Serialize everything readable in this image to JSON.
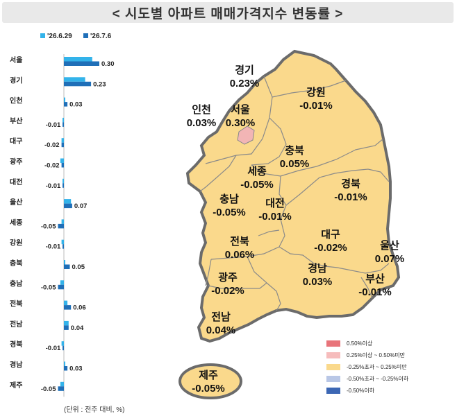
{
  "title": "< 시도별 아파트 매매가격지수 변동률 >",
  "footnote": "(단위 : 전주 대비, %)",
  "colors": {
    "series_prev": "#33b3ea",
    "series_curr": "#1f6fb8",
    "map_fill": "#fad98c",
    "map_seoul": "#f2b5b5",
    "map_border": "#8a8a8a",
    "map_outline": "#6b6b6b"
  },
  "chart_data": {
    "type": "bar",
    "orientation": "horizontal",
    "categories": [
      "서울",
      "경기",
      "인천",
      "부산",
      "대구",
      "광주",
      "대전",
      "울산",
      "세종",
      "강원",
      "충북",
      "충남",
      "전북",
      "전남",
      "경북",
      "경남",
      "제주"
    ],
    "series": [
      {
        "name": "'26.6.29",
        "values": [
          0.24,
          0.18,
          0.01,
          -0.01,
          -0.02,
          -0.03,
          -0.01,
          0.06,
          -0.02,
          -0.02,
          0.01,
          -0.03,
          0.03,
          0.04,
          -0.02,
          0.01,
          -0.03
        ]
      },
      {
        "name": "'26.7.6",
        "values": [
          0.3,
          0.23,
          0.03,
          -0.01,
          -0.02,
          -0.02,
          -0.01,
          0.07,
          -0.05,
          -0.01,
          0.05,
          -0.05,
          0.06,
          0.04,
          -0.01,
          0.03,
          -0.05
        ]
      }
    ],
    "data_labels": [
      "0.30",
      "0.23",
      "0.03",
      "-0.01",
      "-0.02",
      "-0.02",
      "-0.01",
      "0.07",
      "-0.05",
      "-0.01",
      "0.05",
      "-0.05",
      "0.06",
      "0.04",
      "-0.01",
      "0.03",
      "-0.05"
    ],
    "legend_position": "top"
  },
  "map_labels": [
    {
      "name": "경기",
      "value": "0.23%"
    },
    {
      "name": "강원",
      "value": "-0.01%"
    },
    {
      "name": "인천",
      "value": "0.03%"
    },
    {
      "name": "서울",
      "value": "0.30%"
    },
    {
      "name": "충북",
      "value": "0.05%"
    },
    {
      "name": "세종",
      "value": "-0.05%"
    },
    {
      "name": "경북",
      "value": "-0.01%"
    },
    {
      "name": "충남",
      "value": "-0.05%"
    },
    {
      "name": "대전",
      "value": "-0.01%"
    },
    {
      "name": "대구",
      "value": "-0.02%"
    },
    {
      "name": "울산",
      "value": "0.07%"
    },
    {
      "name": "전북",
      "value": "0.06%"
    },
    {
      "name": "경남",
      "value": "0.03%"
    },
    {
      "name": "부산",
      "value": "-0.01%"
    },
    {
      "name": "광주",
      "value": "-0.02%"
    },
    {
      "name": "전남",
      "value": "0.04%"
    },
    {
      "name": "제주",
      "value": "-0.05%"
    }
  ],
  "legend_map": [
    {
      "label": "0.50%이상",
      "color": "#e8747a"
    },
    {
      "label": "0.25%이상 ~ 0.50%미만",
      "color": "#f6bcbc"
    },
    {
      "label": "-0.25%초과 ~ 0.25%미만",
      "color": "#fad98c"
    },
    {
      "label": "-0.50%초과 ~ -0.25%이하",
      "color": "#b9c7e6"
    },
    {
      "label": "-0.50%이하",
      "color": "#3c67b4"
    }
  ]
}
